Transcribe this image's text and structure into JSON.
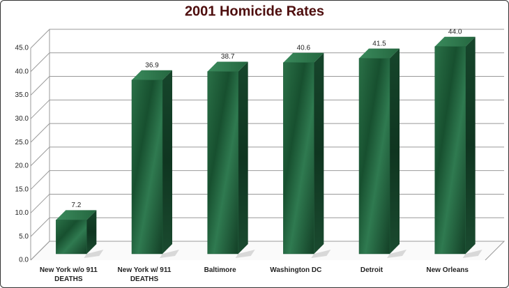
{
  "chart_data": {
    "type": "bar3d",
    "title": "2001 Homicide Rates",
    "categories": [
      "New York w/o 911 DEATHS",
      "New York w/ 911 DEATHS",
      "Baltimore",
      "Washington DC",
      "Detroit",
      "New Orleans"
    ],
    "values": [
      7.2,
      36.9,
      38.7,
      40.6,
      41.5,
      44.0
    ],
    "value_labels": [
      "7.2",
      "36.9",
      "38.7",
      "40.6",
      "41.5",
      "44.0"
    ],
    "color": "#1f5e3b",
    "ylim": [
      0,
      45
    ],
    "yticks": [
      {
        "value": 0,
        "label": "0.0"
      },
      {
        "value": 5,
        "label": "5.0"
      },
      {
        "value": 10,
        "label": "10.0"
      },
      {
        "value": 15,
        "label": "15.0"
      },
      {
        "value": 20,
        "label": "20.0"
      },
      {
        "value": 25,
        "label": "25.0"
      },
      {
        "value": 30,
        "label": "30.0"
      },
      {
        "value": 35,
        "label": "35.0"
      },
      {
        "value": 40,
        "label": "40.0"
      },
      {
        "value": 45,
        "label": "45.0"
      }
    ],
    "grid": true
  }
}
